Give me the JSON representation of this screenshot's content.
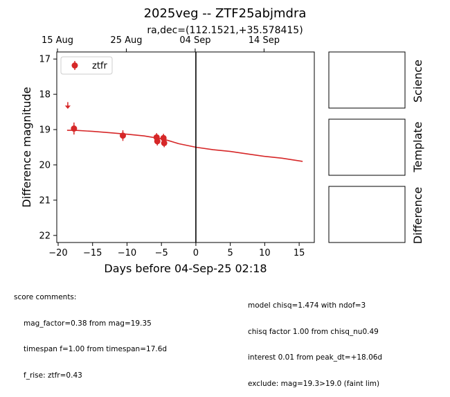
{
  "chart_data": {
    "type": "scatter",
    "title": "2025veg -- ZTF25abjmdra",
    "subtitle": "ra,dec=(112.1521,+35.578415)",
    "xlabel": "Days before 04-Sep-25 02:18",
    "ylabel": "Difference magnitude",
    "xlim": [
      -20.2,
      17.2
    ],
    "ylim": [
      22.2,
      16.8
    ],
    "y_inverted": true,
    "grid": false,
    "legend_placement": "top-left",
    "x_ticks": [
      {
        "value": -20,
        "label": "−20"
      },
      {
        "value": -15,
        "label": "−15"
      },
      {
        "value": -10,
        "label": "−10"
      },
      {
        "value": -5,
        "label": "−5"
      },
      {
        "value": 0,
        "label": "0"
      },
      {
        "value": 5,
        "label": "5"
      },
      {
        "value": 10,
        "label": "10"
      },
      {
        "value": 15,
        "label": "15"
      }
    ],
    "y_ticks": [
      {
        "value": 17,
        "label": "17"
      },
      {
        "value": 18,
        "label": "18"
      },
      {
        "value": 19,
        "label": "19"
      },
      {
        "value": 20,
        "label": "20"
      },
      {
        "value": 21,
        "label": "21"
      },
      {
        "value": 22,
        "label": "22"
      }
    ],
    "top_ticks": [
      {
        "value": -20.1,
        "label": "15 Aug"
      },
      {
        "value": -10.1,
        "label": "25 Aug"
      },
      {
        "value": -0.1,
        "label": "04 Sep"
      },
      {
        "value": 9.9,
        "label": "14 Sep"
      }
    ],
    "reference_line_x": 0,
    "series": [
      {
        "name": "ztfr",
        "color": "#d62728",
        "points": [
          {
            "x": -17.7,
            "y": 18.97,
            "err": 0.17
          },
          {
            "x": -10.6,
            "y": 19.17,
            "err": 0.15
          },
          {
            "x": -5.7,
            "y": 19.22,
            "err": 0.12
          },
          {
            "x": -5.6,
            "y": 19.33,
            "err": 0.12
          },
          {
            "x": -4.7,
            "y": 19.24,
            "err": 0.12
          },
          {
            "x": -4.6,
            "y": 19.38,
            "err": 0.12
          }
        ],
        "upper_limits": [
          {
            "x": -18.6,
            "y": 18.3
          }
        ]
      }
    ],
    "model_curve": {
      "color": "#d62728",
      "x": [
        -18.7,
        -17.5,
        -15,
        -12.5,
        -10,
        -7.5,
        -5,
        -4,
        -2.5,
        0,
        2.5,
        5,
        7.5,
        10,
        12.5,
        15.5
      ],
      "y": [
        19.02,
        19.02,
        19.05,
        19.09,
        19.13,
        19.18,
        19.26,
        19.31,
        19.4,
        19.5,
        19.57,
        19.62,
        19.69,
        19.76,
        19.81,
        19.9
      ]
    },
    "side_panels": [
      "Science",
      "Template",
      "Difference"
    ]
  },
  "comments": {
    "heading": "score comments:",
    "left": [
      "mag_factor=0.38 from mag=19.35",
      "timespan f=1.00 from timespan=17.6d",
      "f_rise: ztfr=0.43"
    ],
    "right": [
      "model chisq=1.474 with ndof=3",
      "chisq factor 1.00 from chisq_nu0.49",
      "interest 0.01 from peak_dt=+18.06d",
      "exclude: mag=19.3>19.0 (faint lim)"
    ]
  }
}
